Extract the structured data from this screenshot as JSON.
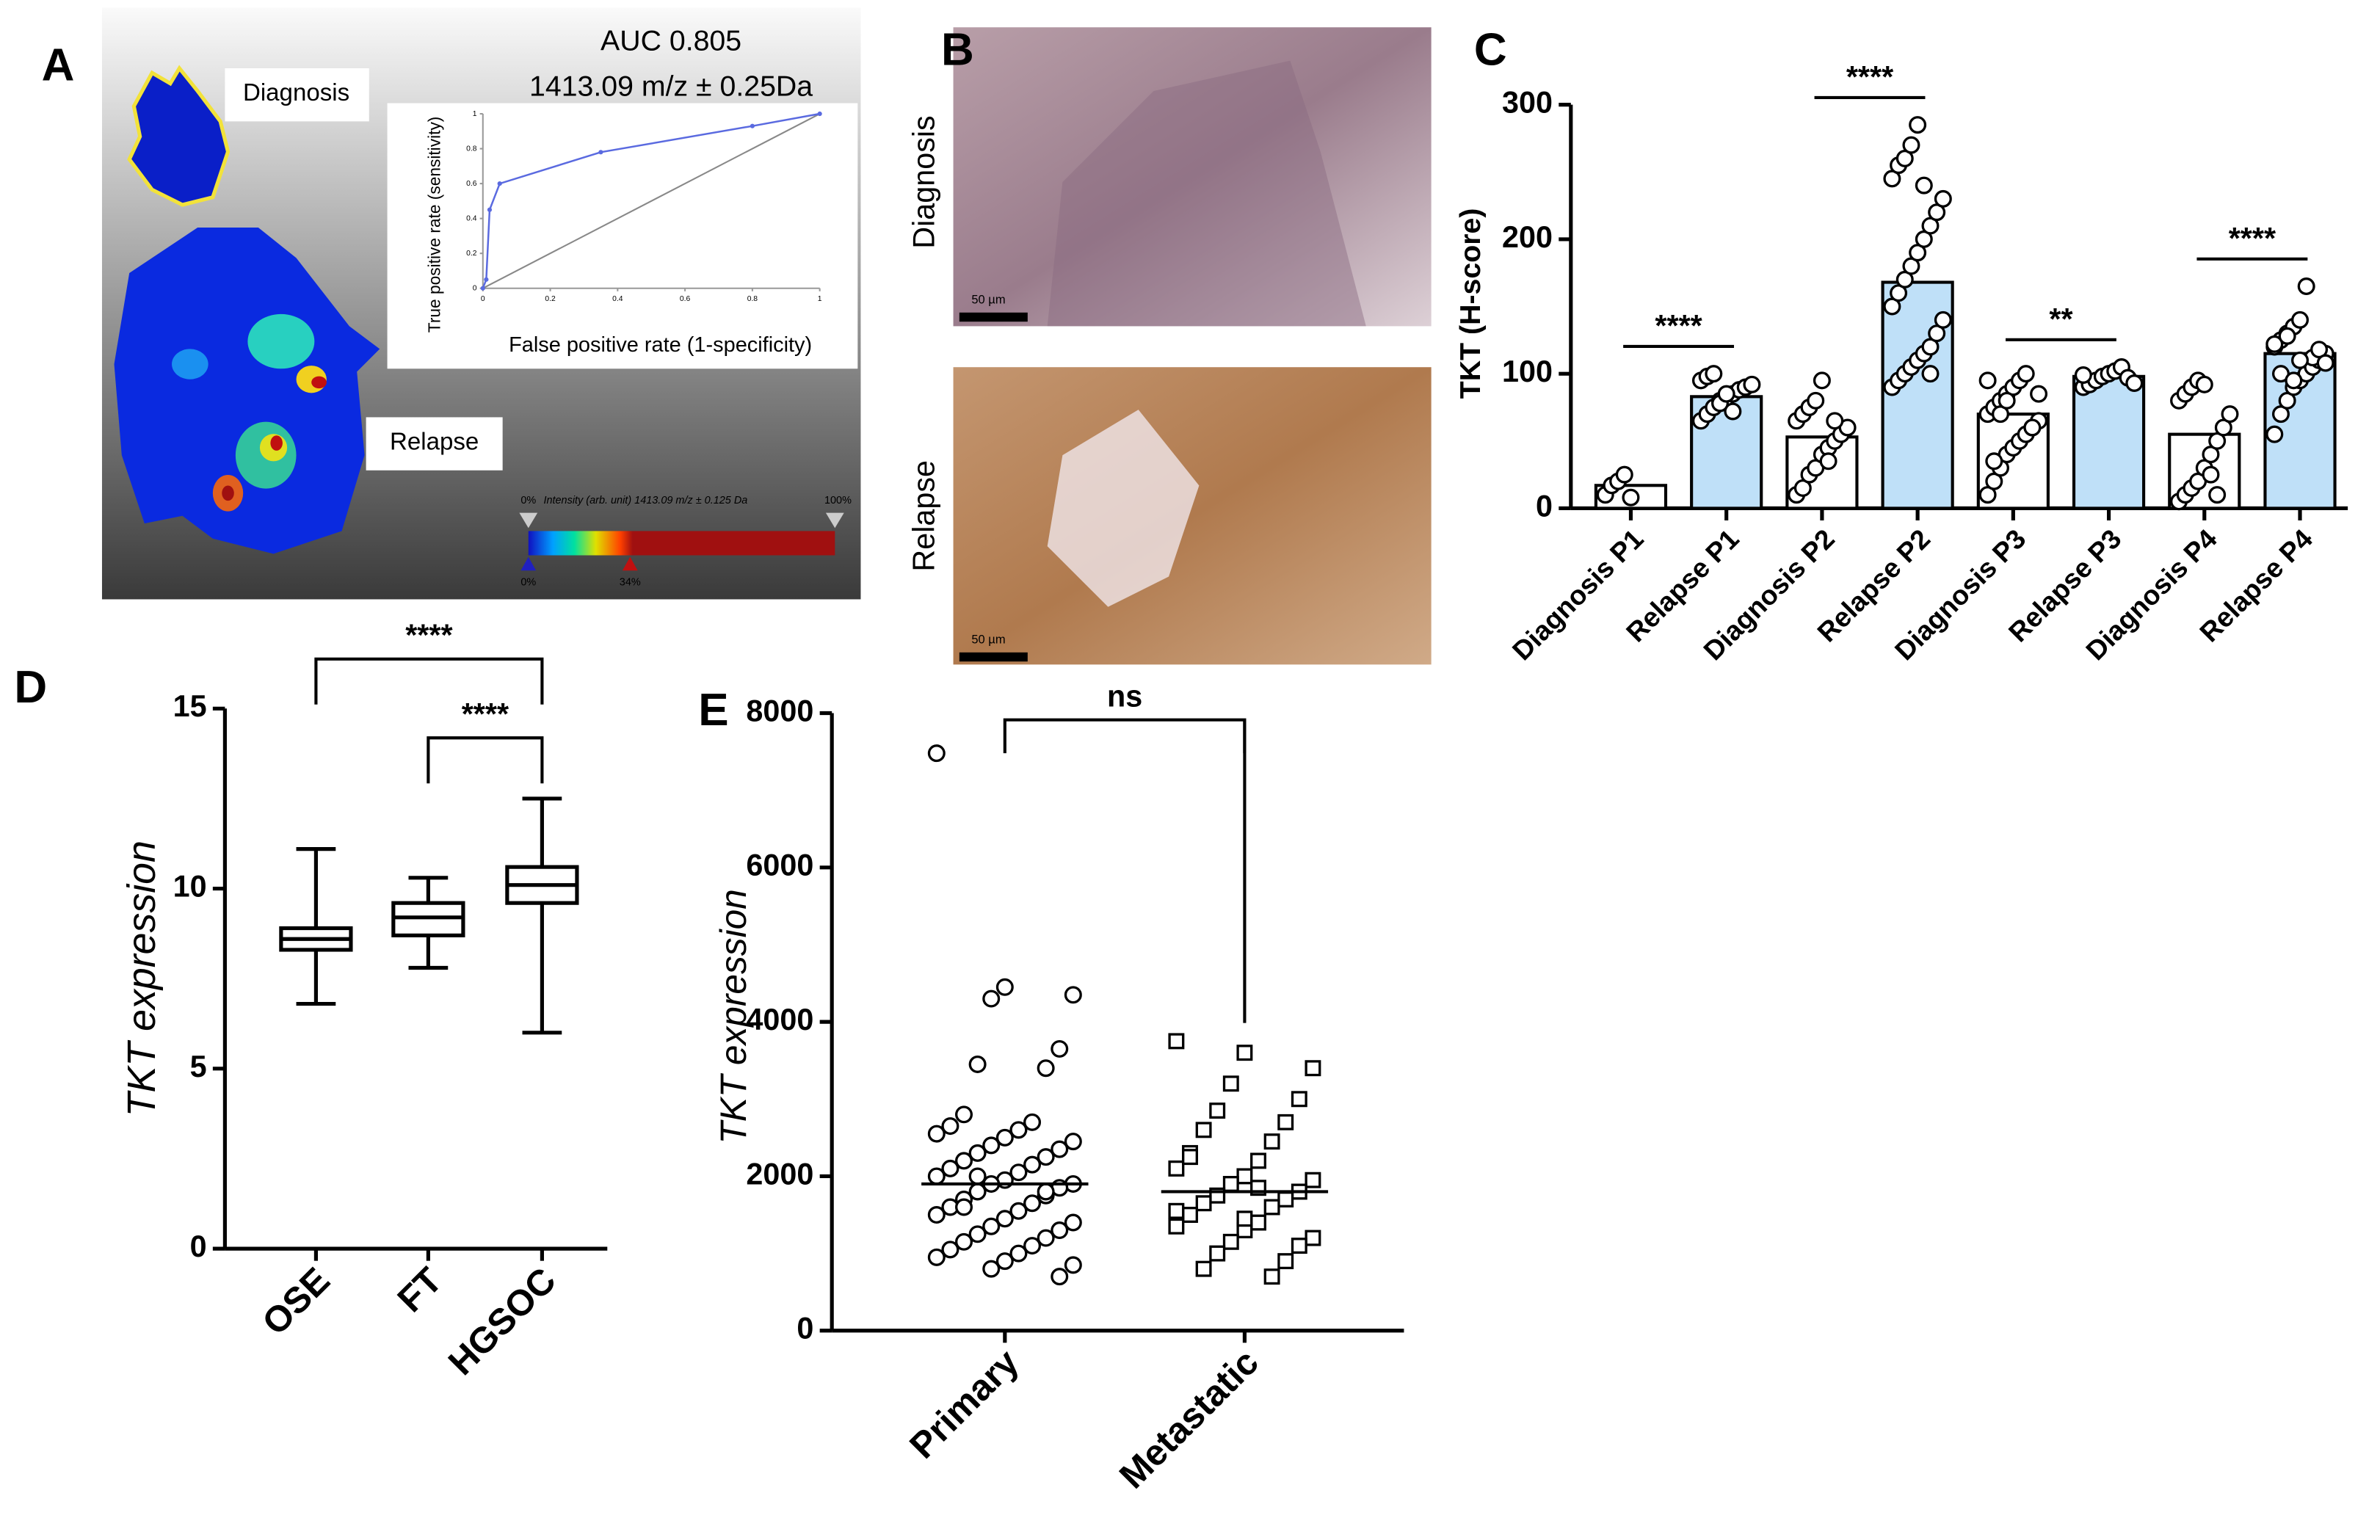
{
  "panel_b": {
    "letter": "B",
    "labels": [
      "Diagnosis",
      "Relapse"
    ],
    "scale_bars": [
      "50 µm",
      "50 µm"
    ]
  },
  "chart_data": [
    {
      "type": "line",
      "panel": "A",
      "title": "AUC 0.805",
      "subtitle": "1413.09 m/z ± 0.25Da",
      "xlabel": "False positive rate (1-specificity)",
      "ylabel": "True positive rate (sensitivity)",
      "x": [
        0,
        0.01,
        0.02,
        0.05,
        0.35,
        0.8,
        1
      ],
      "values": [
        0,
        0.05,
        0.45,
        0.6,
        0.78,
        0.93,
        1
      ],
      "color": "#5a6ae0",
      "xlim": [
        0,
        1
      ],
      "ylim": [
        0,
        1
      ],
      "xticks": [
        0,
        0.2,
        0.4,
        0.6,
        0.8,
        1
      ],
      "yticks": [
        0,
        0.2,
        0.4,
        0.6,
        0.8,
        1
      ],
      "region_labels": [
        "Diagnosis",
        "Relapse"
      ],
      "colorbar_title": "Intensity (arb. unit) 1413.09 m/z ± 0.125 Da",
      "colorbar_labels": [
        "0%",
        "100%",
        "0%",
        "34%"
      ]
    },
    {
      "type": "bar",
      "panel": "C",
      "ylabel": "TKT (H-score)",
      "categories": [
        "Diagnosis P1",
        "Relapse P1",
        "Diagnosis P2",
        "Relapse P2",
        "Diagnosis P3",
        "Relapse P3",
        "Diagnosis P4",
        "Relapse P4"
      ],
      "values": [
        17,
        83,
        53,
        168,
        70,
        98,
        55,
        115
      ],
      "bar_colors": [
        "#ffffff",
        "#bfe0f8",
        "#ffffff",
        "#bfe0f8",
        "#ffffff",
        "#bfe0f8",
        "#ffffff",
        "#bfe0f8"
      ],
      "points": [
        [
          10,
          17,
          20,
          25,
          8
        ],
        [
          65,
          70,
          75,
          80,
          82,
          85,
          88,
          90,
          92,
          95,
          98,
          100,
          78,
          85,
          72
        ],
        [
          10,
          15,
          25,
          30,
          40,
          45,
          50,
          55,
          60,
          65,
          70,
          75,
          80,
          95,
          35,
          65
        ],
        [
          90,
          95,
          100,
          105,
          110,
          115,
          120,
          130,
          140,
          150,
          160,
          170,
          180,
          190,
          200,
          210,
          220,
          230,
          245,
          255,
          260,
          270,
          285,
          240,
          100
        ],
        [
          10,
          20,
          30,
          40,
          45,
          50,
          55,
          60,
          65,
          70,
          75,
          80,
          85,
          90,
          95,
          100,
          60,
          85,
          95,
          35,
          70,
          80
        ],
        [
          90,
          92,
          95,
          98,
          100,
          102,
          105,
          97,
          93,
          99
        ],
        [
          5,
          10,
          15,
          20,
          30,
          40,
          50,
          60,
          70,
          80,
          85,
          90,
          95,
          92,
          25,
          10
        ],
        [
          55,
          70,
          80,
          90,
          95,
          100,
          105,
          110,
          115,
          120,
          125,
          130,
          135,
          140,
          165,
          112,
          118,
          108,
          122,
          100,
          128,
          95,
          110
        ]
      ],
      "ylim": [
        0,
        300
      ],
      "yticks": [
        0,
        100,
        200,
        300
      ],
      "significance": [
        "****",
        "****",
        "**",
        "****"
      ]
    },
    {
      "type": "box",
      "panel": "D",
      "ylabel": "TKT expression",
      "categories": [
        "OSE",
        "FT",
        "HGSOC"
      ],
      "stats": [
        [
          6.8,
          8.3,
          8.6,
          8.9,
          11.1
        ],
        [
          7.8,
          8.7,
          9.2,
          9.6,
          10.3
        ],
        [
          6.0,
          9.6,
          10.1,
          10.6,
          12.5
        ]
      ],
      "ylim": [
        0,
        15
      ],
      "yticks": [
        0,
        5,
        10,
        15
      ],
      "significance": [
        "****",
        "****"
      ]
    },
    {
      "type": "scatter",
      "panel": "E",
      "ylabel": "TKT expression",
      "categories": [
        "Primary",
        "Metastatic"
      ],
      "points": [
        [
          7480,
          4450,
          4350,
          4300,
          3650,
          3450,
          3400,
          2800,
          2700,
          2650,
          2600,
          2550,
          2500,
          2450,
          2400,
          2350,
          2300,
          2250,
          2200,
          2150,
          2100,
          2050,
          2000,
          1950,
          1900,
          1900,
          1850,
          1800,
          1750,
          1700,
          1650,
          1600,
          1550,
          1500,
          1450,
          1400,
          1350,
          1300,
          1250,
          1200,
          1150,
          1100,
          1050,
          1000,
          950,
          900,
          850,
          800,
          700,
          2000,
          1800,
          1600
        ],
        [
          3750,
          3600,
          3400,
          3200,
          3000,
          2850,
          2700,
          2600,
          2450,
          2300,
          2200,
          2100,
          2000,
          1950,
          1900,
          1800,
          1750,
          1700,
          1650,
          1600,
          1500,
          1400,
          1350,
          1300,
          1200,
          1150,
          1100,
          1000,
          900,
          800,
          700,
          2250,
          1850,
          1550,
          1450
        ]
      ],
      "medians": [
        1900,
        1800
      ],
      "markers": [
        "circle",
        "square"
      ],
      "ylim": [
        0,
        8000
      ],
      "yticks": [
        0,
        2000,
        4000,
        6000,
        8000
      ],
      "significance": [
        "ns"
      ]
    }
  ]
}
